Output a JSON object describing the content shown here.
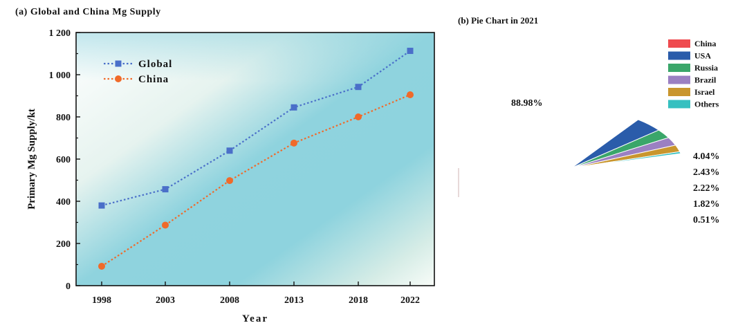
{
  "panel_a": {
    "title": "(a) Global and China Mg Supply"
  },
  "panel_b": {
    "title": "(b) Pie Chart in 2021"
  },
  "chart_data": [
    {
      "type": "line",
      "title": "(a) Global and China Mg Supply",
      "xlabel": "Year",
      "ylabel": "Primary Mg Supply/kt",
      "categories": [
        "1998",
        "2003",
        "2008",
        "2013",
        "2018",
        "2022"
      ],
      "ylim": [
        0,
        1200
      ],
      "yticks": [
        0,
        200,
        400,
        600,
        800,
        1000,
        1200
      ],
      "ytick_labels": [
        "0",
        "200",
        "400",
        "600",
        "800",
        "1 000",
        "1 200"
      ],
      "legend_position": "top-left",
      "series": [
        {
          "name": "Global",
          "color": "#4a6fc9",
          "marker": "square",
          "values": [
            380,
            457,
            640,
            845,
            942,
            1113
          ]
        },
        {
          "name": "China",
          "color": "#f06a2a",
          "marker": "circle",
          "values": [
            92,
            287,
            498,
            676,
            800,
            905
          ]
        }
      ]
    },
    {
      "type": "pie",
      "title": "(b) Pie Chart in 2021",
      "legend_position": "top-right",
      "slices": [
        {
          "label": "China",
          "value": 88.98,
          "display": "88.98%",
          "color": "#ef4b4f",
          "dark": "#5a1010"
        },
        {
          "label": "USA",
          "value": 4.04,
          "display": "4.04%",
          "color": "#2a5caa",
          "dark": "#10264a"
        },
        {
          "label": "Russia",
          "value": 2.43,
          "display": "2.43%",
          "color": "#3aa66a",
          "dark": "#15462a"
        },
        {
          "label": "Brazil",
          "value": 2.22,
          "display": "2.22%",
          "color": "#9b80c2",
          "dark": "#3f3058"
        },
        {
          "label": "Israel",
          "value": 1.82,
          "display": "1.82%",
          "color": "#c9962e",
          "dark": "#57400f"
        },
        {
          "label": "Others",
          "value": 0.51,
          "display": "0.51%",
          "color": "#36c0c0",
          "dark": "#0f5050"
        }
      ]
    }
  ]
}
